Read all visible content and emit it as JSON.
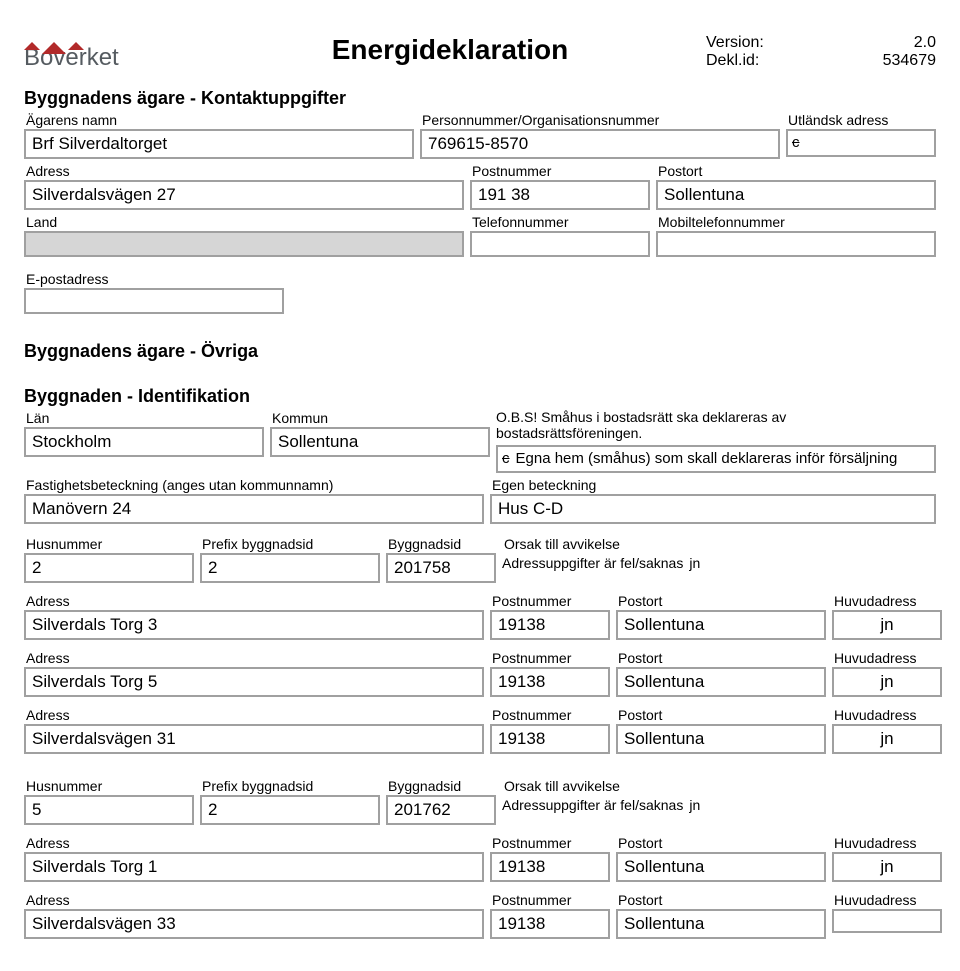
{
  "header": {
    "title": "Energideklaration",
    "logo_text": "Boverket",
    "version_label": "Version:",
    "version_value": "2.0",
    "deklid_label": "Dekl.id:",
    "deklid_value": "534679"
  },
  "owner_contact": {
    "heading": "Byggnadens ägare - Kontaktuppgifter",
    "name_label": "Ägarens namn",
    "name_value": "Brf Silverdaltorget",
    "pnr_label": "Personnummer/Organisationsnummer",
    "pnr_value": "769615-8570",
    "foreign_label": "Utländsk adress",
    "foreign_mark": "c",
    "address_label": "Adress",
    "address_value": "Silverdalsvägen 27",
    "postnr_label": "Postnummer",
    "postnr_value": "191 38",
    "postort_label": "Postort",
    "postort_value": "Sollentuna",
    "land_label": "Land",
    "land_value": "",
    "tel_label": "Telefonnummer",
    "tel_value": "",
    "mobil_label": "Mobiltelefonnummer",
    "mobil_value": "",
    "email_label": "E-postadress",
    "email_value": ""
  },
  "owner_other_heading": "Byggnadens ägare - Övriga",
  "identification": {
    "heading": "Byggnaden - Identifikation",
    "lan_label": "Län",
    "lan_value": "Stockholm",
    "kommun_label": "Kommun",
    "kommun_value": "Sollentuna",
    "obs_text": "O.B.S! Småhus i bostadsrätt ska deklareras av bostadsrättsföreningen.",
    "egna_hem_mark": "c",
    "egna_hem_text": "Egna hem (småhus) som skall deklareras inför försäljning",
    "fastbet_label": "Fastighetsbeteckning (anges utan kommunnamn)",
    "fastbet_value": "Manövern 24",
    "egenbet_label": "Egen beteckning",
    "egenbet_value": "Hus C-D"
  },
  "buildings": [
    {
      "husnr_label": "Husnummer",
      "husnr_value": "2",
      "prefix_label": "Prefix byggnadsid",
      "prefix_value": "2",
      "byggid_label": "Byggnadsid",
      "byggid_value": "201758",
      "orsak_label": "Orsak till avvikelse",
      "avvik_text": "Adressuppgifter är fel/saknas",
      "avvik_mark": "jn",
      "addresses": [
        {
          "addr": "Silverdals Torg 3",
          "postnr": "19138",
          "postort": "Sollentuna",
          "huvud": "jn"
        },
        {
          "addr": "Silverdals Torg 5",
          "postnr": "19138",
          "postort": "Sollentuna",
          "huvud": "jn"
        },
        {
          "addr": "Silverdalsvägen 31",
          "postnr": "19138",
          "postort": "Sollentuna",
          "huvud": "jn"
        }
      ]
    },
    {
      "husnr_label": "Husnummer",
      "husnr_value": "5",
      "prefix_label": "Prefix byggnadsid",
      "prefix_value": "2",
      "byggid_label": "Byggnadsid",
      "byggid_value": "201762",
      "orsak_label": "Orsak till avvikelse",
      "avvik_text": "Adressuppgifter är fel/saknas",
      "avvik_mark": "jn",
      "addresses": [
        {
          "addr": "Silverdals Torg 1",
          "postnr": "19138",
          "postort": "Sollentuna",
          "huvud": "jn"
        },
        {
          "addr": "Silverdalsvägen 33",
          "postnr": "19138",
          "postort": "Sollentuna",
          "huvud": ""
        }
      ]
    }
  ],
  "labels": {
    "adress": "Adress",
    "postnr": "Postnummer",
    "postort": "Postort",
    "huvud": "Huvudadress"
  }
}
